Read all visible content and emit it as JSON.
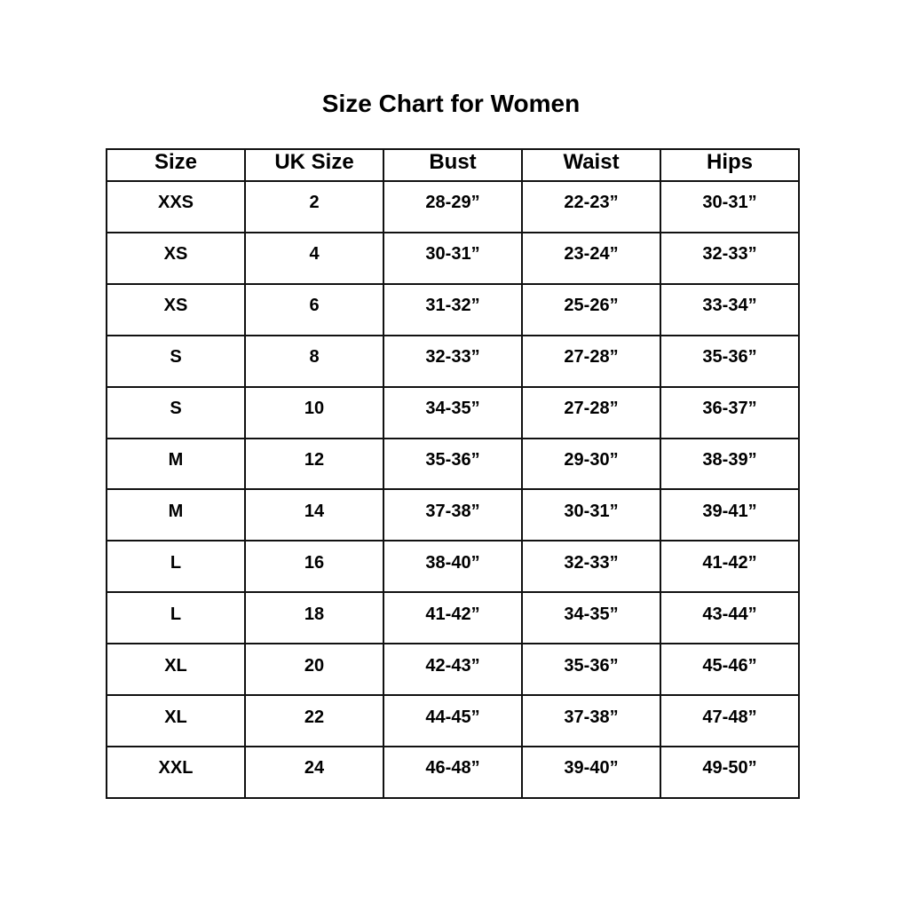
{
  "title": "Size Chart for Women",
  "table": {
    "headers": [
      "Size",
      "UK Size",
      "Bust",
      "Waist",
      "Hips"
    ],
    "rows": [
      [
        "XXS",
        "2",
        "28-29”",
        "22-23”",
        "30-31”"
      ],
      [
        "XS",
        "4",
        "30-31”",
        "23-24”",
        "32-33”"
      ],
      [
        "XS",
        "6",
        "31-32”",
        "25-26”",
        "33-34”"
      ],
      [
        "S",
        "8",
        "32-33”",
        "27-28”",
        "35-36”"
      ],
      [
        "S",
        "10",
        "34-35”",
        "27-28”",
        "36-37”"
      ],
      [
        "M",
        "12",
        "35-36”",
        "29-30”",
        "38-39”"
      ],
      [
        "M",
        "14",
        "37-38”",
        "30-31”",
        "39-41”"
      ],
      [
        "L",
        "16",
        "38-40”",
        "32-33”",
        "41-42”"
      ],
      [
        "L",
        "18",
        "41-42”",
        "34-35”",
        "43-44”"
      ],
      [
        "XL",
        "20",
        "42-43”",
        "35-36”",
        "45-46”"
      ],
      [
        "XL",
        "22",
        "44-45”",
        "37-38”",
        "47-48”"
      ],
      [
        "XXL",
        "24",
        "46-48”",
        "39-40”",
        "49-50”"
      ]
    ]
  }
}
